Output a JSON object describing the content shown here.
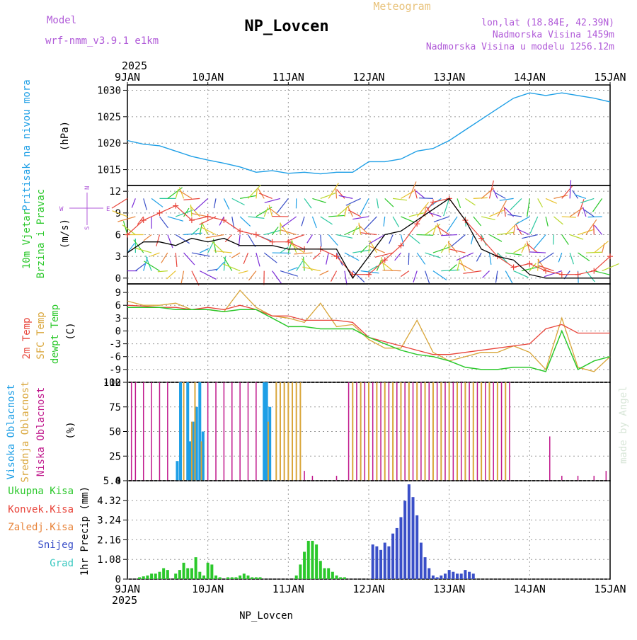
{
  "header": {
    "model_label": "Model",
    "model_name": "wrf-nmm_v3.9.1 e1km",
    "title": "NP_Lovcen",
    "meteogram": "Meteogram",
    "lonlat": "lon,lat (18.84E, 42.39N)",
    "elevation": "Nadmorska Visina 1459m",
    "model_elevation": "Nadmorska Visina u modelu 1256.12m",
    "year_top": "2025",
    "year_bottom": "2025",
    "footer": "NP_Lovcen",
    "watermark": "made by Angel"
  },
  "colors": {
    "pressure": "#1e9fe6",
    "wind_black": "#000000",
    "gust": "#e8443a",
    "temp2m": "#e8443a",
    "sfctemp": "#d9a63a",
    "dewpt": "#2bc82b",
    "cloud_high": "#1e9fe6",
    "cloud_mid": "#d9a63a",
    "cloud_low": "#c0188c",
    "precip_total": "#2bc82b",
    "precip_snow": "#3a4fc8",
    "model_purple": "#b05ad8",
    "meteogram": "#e8c27a"
  },
  "chart_data": [
    {
      "type": "line",
      "panel": "pressure",
      "ylabel_outer": "Pritisak na nivou mora",
      "ylabel_inner": "(hPa)",
      "ylim": [
        1012,
        1031
      ],
      "yticks": [
        1015,
        1020,
        1025,
        1030
      ],
      "xlim": [
        0,
        6
      ],
      "xtick_labels": [
        "9JAN",
        "10JAN",
        "11JAN",
        "12JAN",
        "13JAN",
        "14JAN",
        "15JAN"
      ],
      "x": [
        0,
        0.2,
        0.4,
        0.6,
        0.8,
        1.0,
        1.2,
        1.4,
        1.6,
        1.8,
        2.0,
        2.2,
        2.4,
        2.6,
        2.8,
        3.0,
        3.2,
        3.4,
        3.6,
        3.8,
        4.0,
        4.2,
        4.4,
        4.6,
        4.8,
        5.0,
        5.2,
        5.4,
        5.6,
        5.8,
        6.0
      ],
      "series": [
        {
          "values": [
            1020.5,
            1019.8,
            1019.5,
            1018.5,
            1017.5,
            1016.8,
            1016.2,
            1015.5,
            1014.5,
            1014.8,
            1014.3,
            1014.5,
            1014.2,
            1014.5,
            1014.5,
            1016.5,
            1016.5,
            1017.0,
            1018.5,
            1019.0,
            1020.5,
            1022.5,
            1024.5,
            1026.5,
            1028.5,
            1029.5,
            1029.0,
            1029.5,
            1029.0,
            1028.5,
            1027.8
          ]
        }
      ]
    },
    {
      "type": "line",
      "panel": "wind",
      "ylabel_outer": [
        "10m Vjetar",
        "Brzina i Pravac"
      ],
      "ylabel_inner": "(m/s)",
      "ylim": [
        -0.8,
        12.8
      ],
      "yticks": [
        0,
        3,
        6,
        9,
        12
      ],
      "compass": [
        "N",
        "S",
        "W",
        "E"
      ],
      "x": [
        0,
        0.2,
        0.4,
        0.6,
        0.8,
        1.0,
        1.2,
        1.4,
        1.6,
        1.8,
        2.0,
        2.2,
        2.4,
        2.6,
        2.8,
        3.0,
        3.2,
        3.4,
        3.6,
        3.8,
        4.0,
        4.2,
        4.4,
        4.6,
        4.8,
        5.0,
        5.2,
        5.4,
        5.6,
        5.8,
        6.0
      ],
      "series": [
        {
          "name": "wind speed",
          "values": [
            3.5,
            5.0,
            5.0,
            4.5,
            5.5,
            5.0,
            5.5,
            4.5,
            4.5,
            4.5,
            4.0,
            4.0,
            4.0,
            4.0,
            0.0,
            3.0,
            6.0,
            6.5,
            8.0,
            9.5,
            11.0,
            8.0,
            4.0,
            3.0,
            2.5,
            0.5,
            0.0,
            0.0,
            0.0,
            0.0,
            0.0
          ]
        },
        {
          "name": "gust",
          "values": [
            6.0,
            8.0,
            9.0,
            10.0,
            8.0,
            8.5,
            8.0,
            6.5,
            6.0,
            5.0,
            5.0,
            4.0,
            4.0,
            3.0,
            0.5,
            0.5,
            2.5,
            4.5,
            7.5,
            10.5,
            11.0,
            8.0,
            5.5,
            3.0,
            1.5,
            2.0,
            1.0,
            0.5,
            0.5,
            1.0,
            3.0
          ]
        }
      ]
    },
    {
      "type": "line",
      "panel": "temperature",
      "ylabel_outer": [
        "2m Temp",
        "SFC Temp",
        "dewpt Temp"
      ],
      "ylabel_inner": "(C)",
      "ylim": [
        -12,
        11
      ],
      "yticks": [
        -12,
        -9,
        -6,
        -3,
        0,
        3,
        6,
        9
      ],
      "x": [
        0,
        0.2,
        0.4,
        0.6,
        0.8,
        1.0,
        1.2,
        1.4,
        1.6,
        1.8,
        2.0,
        2.2,
        2.4,
        2.6,
        2.8,
        3.0,
        3.2,
        3.4,
        3.6,
        3.8,
        4.0,
        4.2,
        4.4,
        4.6,
        4.8,
        5.0,
        5.2,
        5.4,
        5.6,
        5.8,
        6.0
      ],
      "series": [
        {
          "name": "2m Temp",
          "values": [
            6.0,
            5.8,
            5.5,
            5.5,
            5.0,
            5.5,
            5.0,
            6.0,
            5.0,
            3.5,
            3.5,
            2.5,
            2.5,
            2.5,
            2.0,
            -1.5,
            -2.5,
            -3.5,
            -4.5,
            -5.5,
            -5.5,
            -5.0,
            -4.5,
            -4.0,
            -3.5,
            -3.0,
            0.5,
            1.5,
            -0.5,
            -0.5,
            -0.5
          ]
        },
        {
          "name": "SFC Temp",
          "values": [
            7.0,
            6.0,
            6.0,
            6.5,
            5.0,
            5.0,
            4.5,
            9.5,
            5.5,
            3.5,
            3.0,
            2.0,
            6.5,
            1.0,
            1.5,
            -2.0,
            -4.0,
            -4.0,
            2.5,
            -5.0,
            -7.0,
            -6.0,
            -5.0,
            -5.0,
            -3.5,
            -5.0,
            -9.0,
            3.0,
            -8.5,
            -9.5,
            -6.0
          ]
        },
        {
          "name": "dewpt Temp",
          "values": [
            5.5,
            5.5,
            5.5,
            5.0,
            5.0,
            5.0,
            4.5,
            5.0,
            5.0,
            3.0,
            1.0,
            1.0,
            0.5,
            0.5,
            0.5,
            -1.5,
            -3.0,
            -4.5,
            -5.5,
            -6.0,
            -7.0,
            -8.5,
            -9.0,
            -9.0,
            -8.5,
            -8.5,
            -9.5,
            0.0,
            -9.0,
            -7.0,
            -6.0
          ]
        }
      ]
    },
    {
      "type": "bar",
      "panel": "cloud",
      "ylabel_outer": [
        "Visoka Oblacnost",
        "Srednja Oblacnost",
        "Niska  Oblacnost"
      ],
      "ylabel_inner": "(%)",
      "ylim": [
        0,
        100
      ],
      "yticks": [
        0,
        25,
        50,
        75,
        100
      ],
      "series": [
        {
          "name": "Visoka Oblacnost",
          "x": [
            0.62,
            0.66,
            0.75,
            0.78,
            0.82,
            0.86,
            0.9,
            0.94,
            1.7,
            1.73,
            1.77
          ],
          "values": [
            20,
            100,
            100,
            40,
            60,
            75,
            100,
            50,
            100,
            100,
            75
          ]
        },
        {
          "name": "Srednja Oblacnost",
          "x": [
            0.7,
            0.8,
            0.84,
            0.92,
            1.75,
            1.85,
            1.9,
            1.95,
            2.0,
            2.05,
            2.1,
            2.15,
            2.8,
            2.9,
            3.0,
            3.1,
            3.2,
            3.3,
            3.4,
            3.5,
            3.6,
            3.7,
            3.8,
            3.9,
            4.0,
            4.1,
            4.2,
            4.3,
            4.4,
            4.5,
            4.6,
            4.7
          ],
          "values": [
            100,
            60,
            100,
            40,
            60,
            100,
            100,
            100,
            100,
            100,
            100,
            100,
            100,
            100,
            100,
            100,
            100,
            100,
            100,
            100,
            100,
            100,
            100,
            100,
            100,
            100,
            100,
            100,
            100,
            100,
            100,
            100
          ]
        },
        {
          "name": "Niska  Oblacnost",
          "x": [
            0.05,
            0.1,
            0.2,
            0.3,
            0.4,
            0.5,
            1.0,
            1.1,
            1.2,
            1.3,
            1.4,
            1.5,
            1.6,
            2.2,
            2.3,
            2.6,
            2.75,
            2.85,
            2.95,
            3.05,
            3.15,
            3.25,
            3.35,
            3.45,
            3.55,
            3.65,
            3.75,
            3.85,
            3.95,
            4.05,
            4.15,
            4.25,
            4.35,
            4.45,
            4.55,
            4.65,
            4.75,
            5.25,
            5.4,
            5.6,
            5.8,
            5.95
          ],
          "values": [
            100,
            100,
            100,
            100,
            100,
            100,
            100,
            100,
            100,
            100,
            100,
            100,
            100,
            10,
            5,
            5,
            100,
            100,
            100,
            100,
            100,
            100,
            100,
            100,
            100,
            100,
            100,
            100,
            100,
            100,
            100,
            100,
            100,
            100,
            100,
            100,
            100,
            45,
            5,
            5,
            5,
            10
          ]
        }
      ]
    },
    {
      "type": "bar",
      "panel": "precip",
      "ylabel_inner": "1hr Precip (mm)",
      "legend": [
        "Ukupna Kisa",
        "Konvek.Kisa",
        "Zaledj.Kisa",
        "Snijeg",
        "Grad"
      ],
      "ylim": [
        0,
        5.4
      ],
      "yticks": [
        0,
        1.08,
        2.16,
        3.24,
        4.32,
        5.4
      ],
      "series": [
        {
          "name": "Ukupna Kisa",
          "x": [
            0.15,
            0.2,
            0.25,
            0.3,
            0.35,
            0.4,
            0.45,
            0.5,
            0.6,
            0.65,
            0.7,
            0.75,
            0.8,
            0.85,
            0.9,
            0.95,
            1.0,
            1.05,
            1.1,
            1.15,
            1.25,
            1.3,
            1.35,
            1.4,
            1.45,
            1.5,
            1.55,
            1.6,
            1.65,
            2.1,
            2.15,
            2.2,
            2.25,
            2.3,
            2.35,
            2.4,
            2.45,
            2.5,
            2.55,
            2.6,
            2.65,
            2.7
          ],
          "values": [
            0.1,
            0.15,
            0.2,
            0.3,
            0.3,
            0.4,
            0.6,
            0.5,
            0.3,
            0.5,
            0.9,
            0.6,
            0.6,
            1.2,
            0.4,
            0.2,
            0.9,
            0.8,
            0.2,
            0.1,
            0.1,
            0.1,
            0.1,
            0.2,
            0.3,
            0.2,
            0.1,
            0.1,
            0.1,
            0.2,
            0.8,
            1.5,
            2.1,
            2.1,
            1.9,
            1.0,
            0.6,
            0.6,
            0.4,
            0.2,
            0.1,
            0.1
          ]
        },
        {
          "name": "Snijeg",
          "x": [
            3.05,
            3.1,
            3.15,
            3.2,
            3.25,
            3.3,
            3.35,
            3.4,
            3.45,
            3.5,
            3.55,
            3.6,
            3.65,
            3.7,
            3.75,
            3.8,
            3.85,
            3.9,
            3.95,
            4.0,
            4.05,
            4.1,
            4.15,
            4.2,
            4.25,
            4.3
          ],
          "values": [
            1.9,
            1.8,
            1.6,
            2.0,
            1.8,
            2.5,
            2.8,
            3.4,
            4.3,
            5.2,
            4.5,
            3.5,
            2.0,
            1.2,
            0.6,
            0.2,
            0.1,
            0.2,
            0.3,
            0.5,
            0.4,
            0.3,
            0.3,
            0.5,
            0.4,
            0.3
          ]
        }
      ]
    }
  ]
}
